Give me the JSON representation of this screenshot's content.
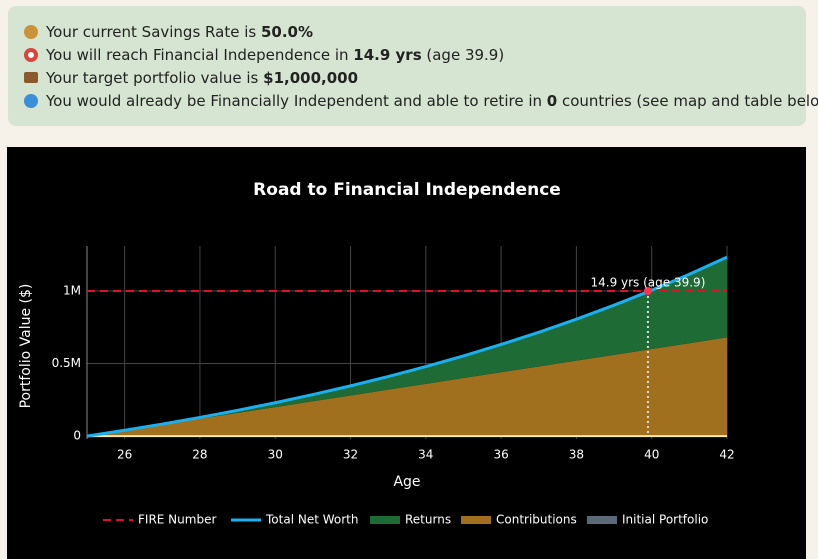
{
  "summary": {
    "lines": [
      {
        "text": "Your current Savings Rate is ",
        "bold": "50.0%"
      },
      {
        "text": "You will reach Financial Independence in ",
        "bold": "14.9 yrs",
        "after": " (age 39.9)"
      },
      {
        "text": "Your target portfolio value is ",
        "bold": "$1,000,000"
      },
      {
        "text": "You would already be Financially Independent and able to retire in ",
        "bold": "0",
        "after": " countries (see map and table below)"
      }
    ]
  },
  "chart_data": {
    "type": "area",
    "title": "Road to Financial Independence",
    "x_label": "Age",
    "y_label": "Portfolio Value ($)",
    "x": [
      25,
      26,
      27,
      28,
      29,
      30,
      31,
      32,
      33,
      34,
      35,
      36,
      37,
      38,
      39,
      40,
      41,
      42
    ],
    "xlim": [
      25,
      42
    ],
    "xticks": [
      26,
      28,
      30,
      32,
      34,
      36,
      38,
      40,
      42
    ],
    "ylim": [
      -20000,
      1310000
    ],
    "yticks": [
      0,
      {
        "value": 500000,
        "label": "0.5M"
      },
      {
        "value": 1000000,
        "label": "1M"
      }
    ],
    "grid": true,
    "series": [
      {
        "name": "FIRE Number",
        "kind": "hline",
        "color": "#e0102a",
        "value": 1000000
      },
      {
        "name": "Total Net Worth",
        "kind": "line",
        "color": "#1ab0f0",
        "values": [
          0,
          40000,
          82800,
          128596,
          177598,
          230030,
          286132,
          346161,
          410393,
          479121,
          552659,
          631345,
          715539,
          805627,
          902021,
          1005163,
          1115524,
          1233611
        ]
      },
      {
        "name": "Returns",
        "kind": "area",
        "color": "#1e6b35",
        "values": [
          0,
          0,
          2800,
          8596,
          17598,
          30030,
          46132,
          66161,
          90393,
          119121,
          152659,
          191345,
          235539,
          285627,
          342021,
          405163,
          475524,
          553611
        ]
      },
      {
        "name": "Contributions",
        "kind": "area",
        "color": "#a0701f",
        "values": [
          0,
          40000,
          80000,
          120000,
          160000,
          200000,
          240000,
          280000,
          320000,
          360000,
          400000,
          440000,
          480000,
          520000,
          560000,
          600000,
          640000,
          680000
        ]
      },
      {
        "name": "Initial Portfolio",
        "kind": "area",
        "color": "#5a6a78",
        "values": [
          0,
          0,
          0,
          0,
          0,
          0,
          0,
          0,
          0,
          0,
          0,
          0,
          0,
          0,
          0,
          0,
          0,
          0
        ]
      }
    ],
    "annotation": {
      "text": "14.9 yrs (age 39.9)",
      "x": 39.9,
      "y": 1000000
    }
  }
}
